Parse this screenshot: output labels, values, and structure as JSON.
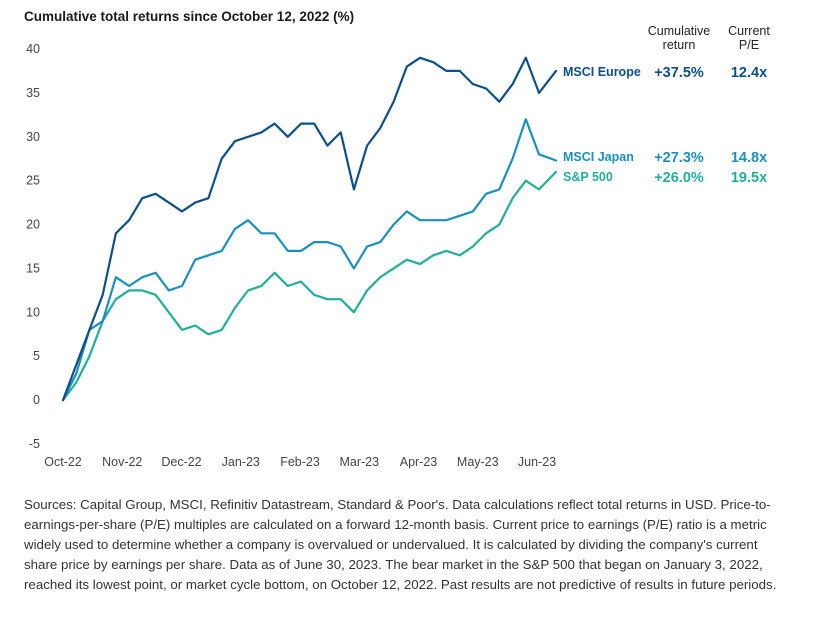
{
  "chart_data": {
    "type": "line",
    "title": "Cumulative total returns since October 12, 2022 (%)",
    "columns": {
      "cumulative_return": "Cumulative return",
      "current_pe": "Current P/E"
    },
    "ylim": [
      -5,
      40
    ],
    "yticks": [
      "40",
      "35",
      "30",
      "25",
      "20",
      "15",
      "10",
      "5",
      "0",
      "-5"
    ],
    "xticks": [
      "Oct-22",
      "Nov-22",
      "Dec-22",
      "Jan-23",
      "Feb-23",
      "Mar-23",
      "Apr-23",
      "May-23",
      "Jun-23"
    ],
    "x_dates": [
      "2022-10-12",
      "2022-10-19",
      "2022-10-26",
      "2022-11-02",
      "2022-11-09",
      "2022-11-16",
      "2022-11-23",
      "2022-11-30",
      "2022-12-07",
      "2022-12-14",
      "2022-12-21",
      "2022-12-28",
      "2023-01-04",
      "2023-01-11",
      "2023-01-18",
      "2023-01-25",
      "2023-02-01",
      "2023-02-08",
      "2023-02-15",
      "2023-02-22",
      "2023-03-01",
      "2023-03-08",
      "2023-03-15",
      "2023-03-22",
      "2023-03-29",
      "2023-04-05",
      "2023-04-12",
      "2023-04-19",
      "2023-04-26",
      "2023-05-03",
      "2023-05-10",
      "2023-05-17",
      "2023-05-24",
      "2023-05-31",
      "2023-06-07",
      "2023-06-14",
      "2023-06-21",
      "2023-06-30"
    ],
    "series": [
      {
        "name": "MSCI Europe",
        "return": "+37.5%",
        "pe": "12.4x",
        "color": "#0d4f8a",
        "values": [
          0,
          4,
          8,
          12,
          19,
          20.5,
          23,
          23.5,
          22.5,
          21.5,
          22.5,
          23,
          27.5,
          29.5,
          30,
          30.5,
          31.5,
          30,
          31.5,
          31.5,
          29,
          30.5,
          24,
          29,
          31,
          34,
          38,
          39,
          38.5,
          37.5,
          37.5,
          36,
          35.5,
          34,
          36,
          39,
          35,
          37.5
        ]
      },
      {
        "name": "MSCI Japan",
        "return": "+27.3%",
        "pe": "14.8x",
        "color": "#1a8fc1",
        "values": [
          0,
          3,
          8,
          9,
          14,
          13,
          14,
          14.5,
          12.5,
          13,
          16,
          16.5,
          17,
          19.5,
          20.5,
          19,
          19,
          17,
          17,
          18,
          18,
          17.5,
          15,
          17.5,
          18,
          20,
          21.5,
          20.5,
          20.5,
          20.5,
          21,
          21.5,
          23.5,
          24,
          27.5,
          32,
          28,
          27.3
        ]
      },
      {
        "name": "S&P 500",
        "return": "+26.0%",
        "pe": "19.5x",
        "color": "#20b09a",
        "values": [
          0,
          2,
          5,
          9,
          11.5,
          12.5,
          12.5,
          12,
          10,
          8,
          8.5,
          7.5,
          8,
          10.5,
          12.5,
          13,
          14.5,
          13,
          13.5,
          12,
          11.5,
          11.5,
          10,
          12.5,
          14,
          15,
          16,
          15.5,
          16.5,
          17,
          16.5,
          17.5,
          19,
          20,
          23,
          25,
          24,
          26
        ]
      }
    ]
  },
  "notes": "Sources: Capital Group, MSCI, Refinitiv Datastream, Standard & Poor's. Data calculations reflect total returns in USD. Price-to-earnings-per-share (P/E) multiples are calculated on a forward 12-month basis. Current price to earnings (P/E) ratio is a metric widely used to determine whether a company is overvalued or undervalued. It is calculated by dividing the company's current share price by earnings per share. Data as of June 30, 2023. The bear market in the S&P 500 that began on January 3, 2022, reached its lowest point, or market cycle bottom, on October 12, 2022. Past results are not predictive of results in future periods."
}
